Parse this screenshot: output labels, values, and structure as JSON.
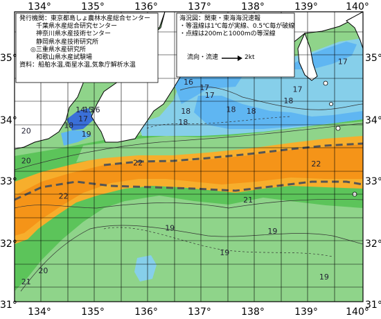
{
  "title": "海況図：関東・東海海況速報",
  "legend_notes": [
    "・等温線は1℃毎が実線、0.5℃毎が破線",
    "・点線は200mと1000mの等深線"
  ],
  "current_legend": {
    "label": "流向・流速",
    "speed": "2kt"
  },
  "publishers": {
    "heading": "発行機関：",
    "orgs": [
      "東京都島しょ農林水産総合センター",
      "千葉県水産総合研究センター",
      "神奈川県水産技術センター",
      "静岡県水産技術研究所",
      "◎三重県水産研究所",
      "和歌山県水産試験場"
    ],
    "sources": "資料：船舶水温,衛星水温,気象庁解析水温"
  },
  "axes": {
    "longitude_labels": [
      "134°",
      "135°",
      "136°",
      "137°",
      "138°",
      "139°",
      "140°"
    ],
    "latitude_labels": [
      "35°",
      "34°",
      "33°",
      "32°",
      "31°"
    ]
  },
  "isotherm_labels": [
    {
      "text": "17",
      "lon": 139.7,
      "lat": 34.85
    },
    {
      "text": "17",
      "lon": 138.85,
      "lat": 34.4
    },
    {
      "text": "16",
      "lon": 136.8,
      "lat": 34.52
    },
    {
      "text": "17",
      "lon": 137.1,
      "lat": 34.43
    },
    {
      "text": "17",
      "lon": 137.2,
      "lat": 34.31
    },
    {
      "text": "18",
      "lon": 136.75,
      "lat": 34.05
    },
    {
      "text": "18",
      "lon": 137.6,
      "lat": 34.08
    },
    {
      "text": "18",
      "lon": 137.98,
      "lat": 34.05
    },
    {
      "text": "18",
      "lon": 136.7,
      "lat": 33.87
    },
    {
      "text": "18",
      "lon": 138.68,
      "lat": 34.22
    },
    {
      "text": "14",
      "lon": 134.77,
      "lat": 34.07
    },
    {
      "text": "15",
      "lon": 134.92,
      "lat": 34.07
    },
    {
      "text": "16",
      "lon": 135.05,
      "lat": 34.07
    },
    {
      "text": "17",
      "lon": 134.82,
      "lat": 33.93
    },
    {
      "text": "18",
      "lon": 134.55,
      "lat": 33.82
    },
    {
      "text": "19",
      "lon": 134.88,
      "lat": 33.68
    },
    {
      "text": "20",
      "lon": 133.75,
      "lat": 33.73
    },
    {
      "text": "20",
      "lon": 133.75,
      "lat": 33.25
    },
    {
      "text": "22",
      "lon": 135.85,
      "lat": 33.22
    },
    {
      "text": "22",
      "lon": 139.2,
      "lat": 33.2
    },
    {
      "text": "22",
      "lon": 134.45,
      "lat": 32.68
    },
    {
      "text": "21",
      "lon": 137.92,
      "lat": 32.62
    },
    {
      "text": "19",
      "lon": 136.45,
      "lat": 32.17
    },
    {
      "text": "19",
      "lon": 138.38,
      "lat": 32.12
    },
    {
      "text": "19",
      "lon": 137.48,
      "lat": 31.77
    },
    {
      "text": "19",
      "lon": 139.35,
      "lat": 31.38
    },
    {
      "text": "20",
      "lon": 134.07,
      "lat": 31.48
    },
    {
      "text": "21",
      "lon": 133.75,
      "lat": 31.3
    }
  ],
  "colors": {
    "sst_12_15": "#3a6fd8",
    "sst_15_17": "#5fb6f2",
    "sst_17_19": "#86cfea",
    "sst_19_20": "#8fd48a",
    "sst_20_21": "#5cc45a",
    "sst_21_22": "#f7ae2c",
    "sst_22_plus": "#f59418",
    "land": "#ffffff",
    "kuroshio_axis": "#555555",
    "frame": "#000000"
  }
}
